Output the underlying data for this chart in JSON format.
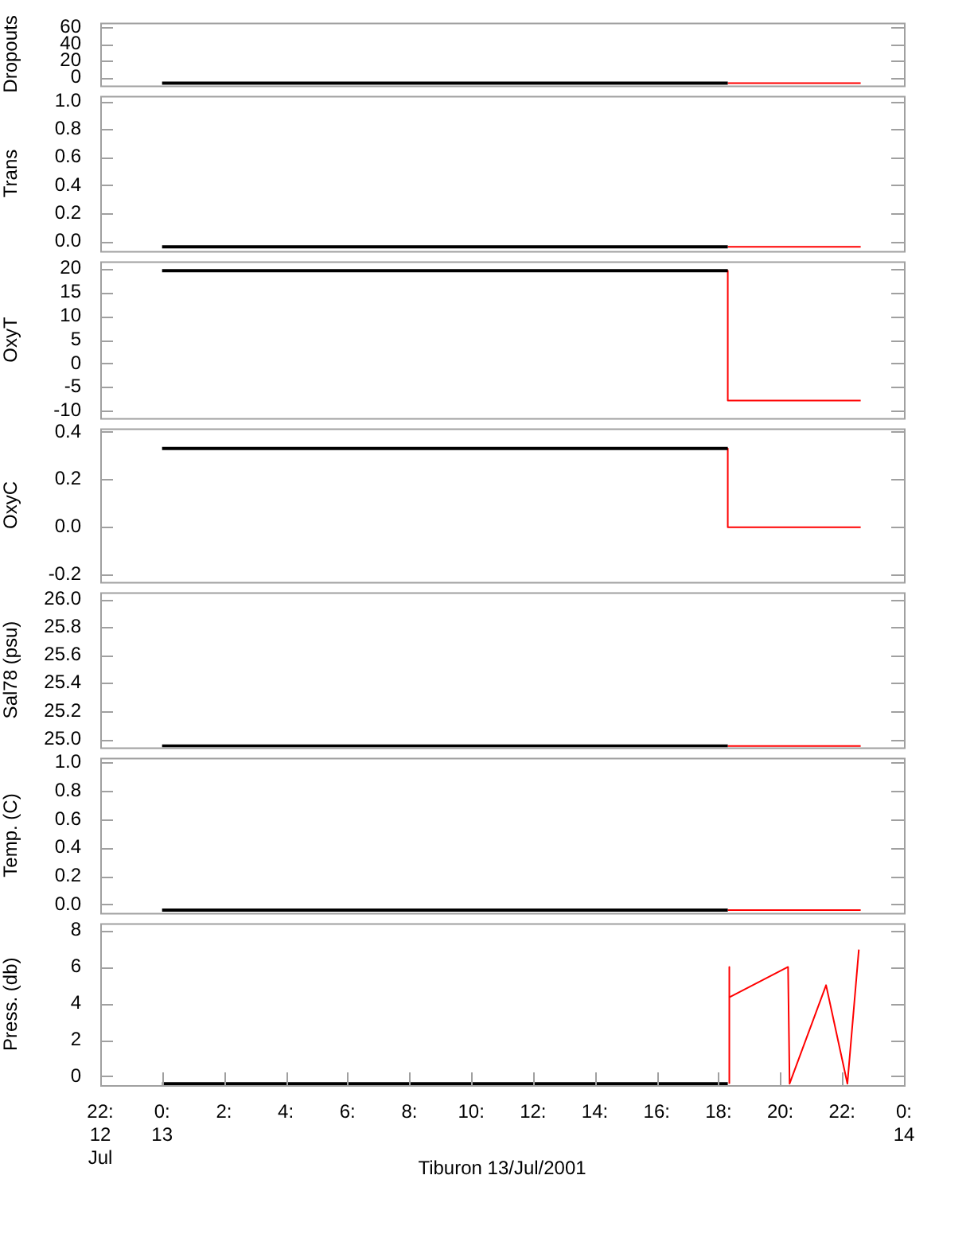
{
  "chart_data": [
    {
      "type": "line",
      "ylabel": "Dropouts",
      "xlim": [
        -2,
        24
      ],
      "ylim": [
        -10,
        66
      ],
      "yticks": [
        0,
        20,
        40,
        60
      ],
      "tick_labels": "y",
      "series": [
        {
          "color": "#000000",
          "x": [
            0,
            18.3
          ],
          "values": [
            -7,
            -7
          ]
        },
        {
          "color": "#ff0000",
          "x": [
            18.3,
            22.6
          ],
          "values": [
            -7,
            -7
          ]
        }
      ]
    },
    {
      "type": "line",
      "ylabel": "Trans",
      "xlim": [
        -2,
        24
      ],
      "ylim": [
        -0.07,
        1.04
      ],
      "yticks": [
        {
          "value": 0,
          "label": "0.0"
        },
        0.2,
        0.4,
        0.6,
        0.8,
        {
          "value": 1,
          "label": "1.0"
        }
      ],
      "tick_labels": "y",
      "series": [
        {
          "color": "#000000",
          "x": [
            0,
            18.3
          ],
          "values": [
            -0.04,
            -0.04
          ]
        },
        {
          "color": "#ff0000",
          "x": [
            18.3,
            22.6
          ],
          "values": [
            -0.04,
            -0.04
          ]
        }
      ]
    },
    {
      "type": "line",
      "ylabel": "OxyT",
      "xlim": [
        -2,
        24
      ],
      "ylim": [
        -11.5,
        21.5
      ],
      "yticks": [
        -10,
        -5,
        0,
        5,
        10,
        15,
        20
      ],
      "tick_labels": "y",
      "series": [
        {
          "color": "#000000",
          "x": [
            0,
            18.3
          ],
          "values": [
            19.5,
            19.5
          ]
        },
        {
          "color": "#ff0000",
          "x": [
            18.3,
            18.3,
            22.6
          ],
          "values": [
            19.5,
            -7.8,
            -7.8
          ]
        }
      ]
    },
    {
      "type": "line",
      "ylabel": "OxyC",
      "xlim": [
        -2,
        24
      ],
      "ylim": [
        -0.23,
        0.415
      ],
      "yticks": [
        -0.2,
        {
          "value": 0,
          "label": "0.0"
        },
        0.2,
        0.4
      ],
      "tick_labels": "y",
      "series": [
        {
          "color": "#000000",
          "x": [
            0,
            18.3
          ],
          "values": [
            0.33,
            0.33
          ]
        },
        {
          "color": "#ff0000",
          "x": [
            18.3,
            18.3,
            22.6
          ],
          "values": [
            0.33,
            0,
            0
          ]
        }
      ]
    },
    {
      "type": "line",
      "ylabel": "Sal78 (psu)",
      "xlim": [
        -2,
        24
      ],
      "ylim": [
        24.94,
        26.05
      ],
      "yticks": [
        {
          "value": 25,
          "label": "25.0"
        },
        25.2,
        25.4,
        25.6,
        25.8,
        {
          "value": 26,
          "label": "26.0"
        }
      ],
      "tick_labels": "y",
      "series": [
        {
          "color": "#000000",
          "x": [
            0,
            18.3
          ],
          "values": [
            24.95,
            24.95
          ]
        },
        {
          "color": "#ff0000",
          "x": [
            18.3,
            22.6
          ],
          "values": [
            24.95,
            24.95
          ]
        }
      ]
    },
    {
      "type": "line",
      "ylabel": "Temp. (C)",
      "xlim": [
        -2,
        24
      ],
      "ylim": [
        -0.06,
        1.035
      ],
      "yticks": [
        {
          "value": 0,
          "label": "0.0"
        },
        0.2,
        0.4,
        0.6,
        0.8,
        {
          "value": 1,
          "label": "1.0"
        }
      ],
      "tick_labels": "y",
      "series": [
        {
          "color": "#000000",
          "x": [
            0,
            18.3
          ],
          "values": [
            -0.04,
            -0.04
          ]
        },
        {
          "color": "#ff0000",
          "x": [
            18.3,
            22.6
          ],
          "values": [
            -0.04,
            -0.04
          ]
        }
      ]
    },
    {
      "type": "line",
      "ylabel": "Press. (db)",
      "xlabel": "Tiburon 13/Jul/2001",
      "xlim": [
        -2,
        24
      ],
      "ylim": [
        -0.48,
        8.4
      ],
      "yticks": [
        0,
        2,
        4,
        6,
        8
      ],
      "xticks": [
        {
          "value": -2,
          "label": "22:\n12\nJul"
        },
        {
          "value": 0,
          "label": "0:\n13"
        },
        {
          "value": 2,
          "label": "2:"
        },
        {
          "value": 4,
          "label": "4:"
        },
        {
          "value": 6,
          "label": "6:"
        },
        {
          "value": 8,
          "label": "8:"
        },
        {
          "value": 10,
          "label": "10:"
        },
        {
          "value": 12,
          "label": "12:"
        },
        {
          "value": 14,
          "label": "14:"
        },
        {
          "value": 16,
          "label": "16:"
        },
        {
          "value": 18,
          "label": "18:"
        },
        {
          "value": 20,
          "label": "20:"
        },
        {
          "value": 22,
          "label": "22:"
        },
        {
          "value": 24,
          "label": "0:\n14"
        }
      ],
      "series": [
        {
          "color": "#000000",
          "x": [
            0,
            18.3
          ],
          "values": [
            -0.4,
            -0.4
          ]
        },
        {
          "color": "#ff0000",
          "x": [
            18.35,
            18.35,
            18.35,
            20.25,
            20.3,
            21.48,
            22.17,
            22.54
          ],
          "values": [
            -0.4,
            6,
            4.33,
            6,
            -0.4,
            5,
            -0.4,
            6.95
          ]
        }
      ]
    }
  ]
}
